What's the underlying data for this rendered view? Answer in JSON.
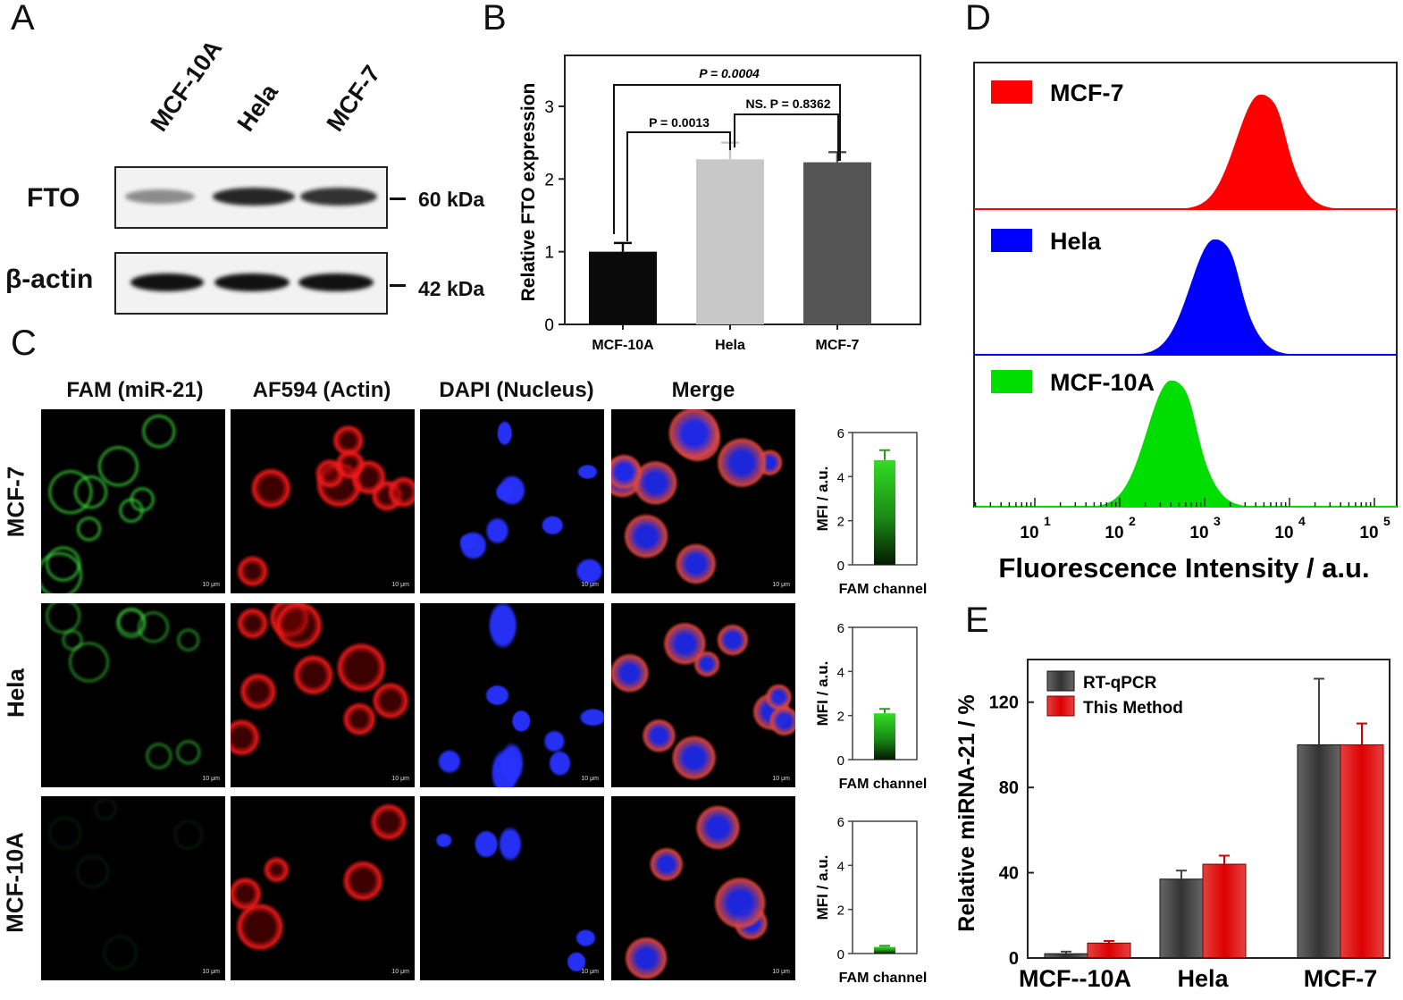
{
  "panels": {
    "A": "A",
    "B": "B",
    "C": "C",
    "D": "D",
    "E": "E"
  },
  "panelA": {
    "lanes": [
      "MCF-10A",
      "Hela",
      "MCF-7"
    ],
    "rows": [
      {
        "label": "FTO",
        "marker": "60 kDa"
      },
      {
        "label": "β-actin",
        "marker": "42 kDa"
      }
    ]
  },
  "panelC": {
    "columns": [
      "FAM (miR-21)",
      "AF594 (Actin)",
      "DAPI (Nucleus)",
      "Merge"
    ],
    "rows": [
      "MCF-7",
      "Hela",
      "MCF-10A"
    ],
    "scale_bar": "10 μm",
    "mfi_ylabel": "MFI / a.u.",
    "mfi_xlabel": "FAM channel",
    "mfi_ticks": [
      "0",
      "2",
      "4",
      "6"
    ]
  },
  "chart_data": [
    {
      "id": "B",
      "type": "bar",
      "categories": [
        "MCF-10A",
        "Hela",
        "MCF-7"
      ],
      "values": [
        1.0,
        2.27,
        2.23
      ],
      "errors": [
        0.12,
        0.23,
        0.14
      ],
      "colors": [
        "#0a0a0a",
        "#c8c8c8",
        "#555555"
      ],
      "ylabel": "Relative FTO expression",
      "ylim": [
        0,
        3.7
      ],
      "yticks": [
        "0",
        "1",
        "2",
        "3"
      ],
      "annotations": [
        "P = 0.0004",
        "P = 0.0013",
        "NS. P = 0.8362"
      ]
    },
    {
      "id": "C-mfi",
      "type": "bar",
      "categories": [
        "MCF-7",
        "Hela",
        "MCF-10A"
      ],
      "values": [
        4.75,
        2.1,
        0.3
      ],
      "errors": [
        0.45,
        0.2,
        0.05
      ],
      "ylim": [
        0,
        6
      ]
    },
    {
      "id": "D",
      "type": "area",
      "xlabel": "Fluorescence Intensity / a.u.",
      "xscale": "log",
      "xlim": [
        1,
        100000
      ],
      "xticks": [
        "10",
        "10",
        "10",
        "10",
        "10"
      ],
      "xtick_exponents": [
        "1",
        "2",
        "3",
        "4",
        "5"
      ],
      "series": [
        {
          "name": "MCF-7",
          "color": "#ff0000",
          "peak_x": 4500
        },
        {
          "name": "Hela",
          "color": "#0000ff",
          "peak_x": 1300
        },
        {
          "name": "MCF-10A",
          "color": "#00dd00",
          "peak_x": 400
        }
      ]
    },
    {
      "id": "E",
      "type": "bar",
      "categories": [
        "MCF--10A",
        "Hela",
        "MCF-7"
      ],
      "series": [
        {
          "name": "RT-qPCR",
          "values": [
            2,
            37,
            100
          ],
          "errors": [
            1,
            4,
            31
          ],
          "color": "#333333"
        },
        {
          "name": "This Method",
          "values": [
            7,
            44,
            100
          ],
          "errors": [
            1,
            4,
            10
          ],
          "color": "#dd0000"
        }
      ],
      "ylabel": "Relative miRNA-21 / %",
      "ylim": [
        0,
        140
      ],
      "yticks": [
        "0",
        "40",
        "80",
        "120"
      ]
    }
  ]
}
